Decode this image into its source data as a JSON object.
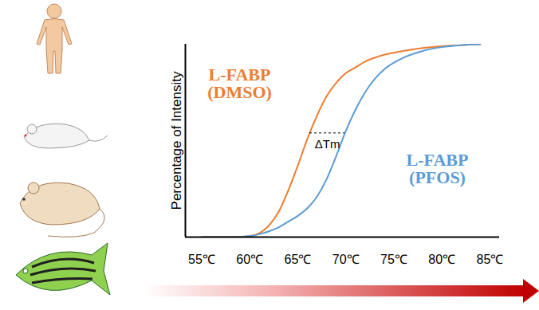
{
  "chart_data": {
    "type": "line",
    "ylabel": "Percentage of Intensity",
    "x": [
      55,
      58,
      60,
      61,
      62,
      63,
      64,
      65,
      66,
      67,
      68,
      69,
      70,
      71,
      72,
      73,
      74,
      76,
      78,
      80,
      82,
      84
    ],
    "series": [
      {
        "name": "L-FABP (DMSO)",
        "color": "#ed7d31",
        "values": [
          0,
          0,
          0.5,
          2,
          6,
          13,
          24,
          37,
          51,
          63,
          73,
          80,
          85,
          88,
          91,
          93,
          94.5,
          96.5,
          98,
          99,
          99.5,
          100
        ]
      },
      {
        "name": "L-FABP (PFOS)",
        "color": "#5b9bd5",
        "values": [
          0,
          0,
          0.5,
          1.5,
          3,
          5,
          8,
          11,
          15,
          21,
          30,
          42,
          55,
          66,
          75,
          82,
          87,
          93,
          96.5,
          98.5,
          99.5,
          100
        ]
      }
    ],
    "xlim": [
      53.3,
      86
    ],
    "ylim": [
      0,
      100
    ],
    "xticks": [
      {
        "value": 55,
        "label": "55℃"
      },
      {
        "value": 60,
        "label": "60℃"
      },
      {
        "value": 65,
        "label": "65℃"
      },
      {
        "value": 70,
        "label": "70℃"
      },
      {
        "value": 75,
        "label": "75℃"
      },
      {
        "value": 80,
        "label": "80℃"
      },
      {
        "value": 85,
        "label": "85℃"
      }
    ],
    "tick_labels": "x",
    "delta_tm": {
      "label": "ΔTm",
      "from": 66.25,
      "to": 69.92,
      "y": 54
    }
  }
}
